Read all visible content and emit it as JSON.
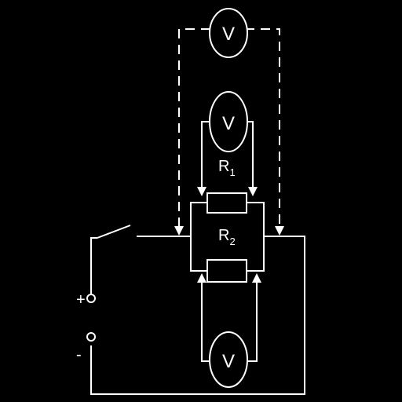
{
  "meters": [
    {
      "label": "V"
    },
    {
      "label": "V"
    },
    {
      "label": "V"
    }
  ],
  "resistors": [
    {
      "letter": "R",
      "index": "1"
    },
    {
      "letter": "R",
      "index": "2"
    }
  ],
  "terminals": {
    "positive": "+",
    "negative": "-"
  }
}
